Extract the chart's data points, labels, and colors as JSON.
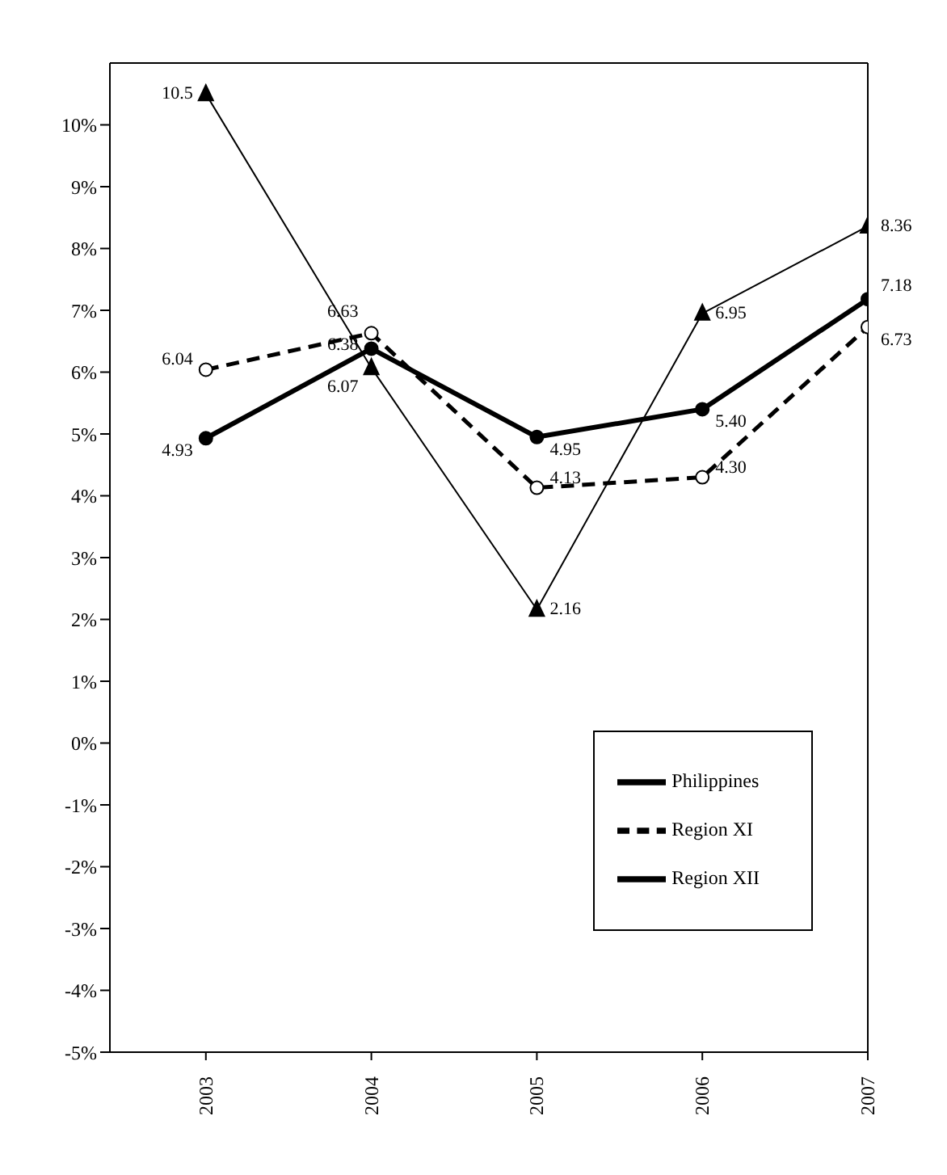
{
  "chart_data": {
    "type": "line",
    "categories": [
      "2003",
      "2004",
      "2005",
      "2006",
      "2007"
    ],
    "ylim": [
      -5,
      11
    ],
    "yticks": [
      {
        "value": -5,
        "label": "-5%"
      },
      {
        "value": -4,
        "label": "-4%"
      },
      {
        "value": -3,
        "label": "-3%"
      },
      {
        "value": -2,
        "label": "-2%"
      },
      {
        "value": -1,
        "label": "-1%"
      },
      {
        "value": 0,
        "label": "0%"
      },
      {
        "value": 1,
        "label": "1%"
      },
      {
        "value": 2,
        "label": "2%"
      },
      {
        "value": 3,
        "label": "3%"
      },
      {
        "value": 4,
        "label": "4%"
      },
      {
        "value": 5,
        "label": "5%"
      },
      {
        "value": 6,
        "label": "6%"
      },
      {
        "value": 7,
        "label": "7%"
      },
      {
        "value": 8,
        "label": "8%"
      },
      {
        "value": 9,
        "label": "9%"
      },
      {
        "value": 10,
        "label": "10%"
      }
    ],
    "grid": false,
    "legend": "bottom right",
    "series": [
      {
        "name": "Philippines",
        "color": "#000000",
        "marker": "circle",
        "line_style": "solid",
        "values": [
          4.93,
          6.38,
          4.95,
          5.4,
          7.18
        ],
        "value_labels": [
          "4.93",
          "6.38",
          "4.95",
          "5.40",
          "7.18"
        ]
      },
      {
        "name": "Region XI",
        "color": "#000000",
        "marker": "circle",
        "line_style": "dashed",
        "values": [
          6.04,
          6.63,
          4.13,
          4.3,
          6.73
        ],
        "value_labels": [
          "6.04",
          "6.63",
          "4.13",
          "4.30",
          "6.73"
        ]
      },
      {
        "name": "Region XII",
        "color": "#000000",
        "marker": "triangle",
        "line_style": "solid",
        "values": [
          10.5,
          6.07,
          2.16,
          6.95,
          8.36
        ],
        "value_labels": [
          "10.5",
          "6.07",
          "2.16",
          "6.95",
          "8.36"
        ]
      }
    ]
  }
}
